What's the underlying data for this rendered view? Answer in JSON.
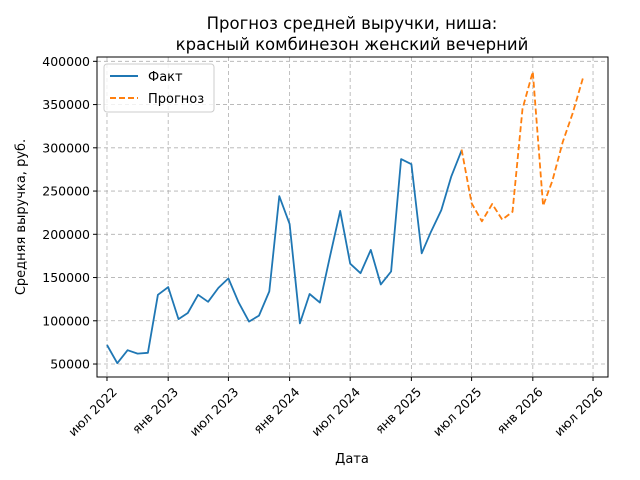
{
  "chart_data": {
    "type": "line",
    "title_lines": [
      "Прогноз средней выручки, ниша:",
      "красный комбинезон женский вечерний"
    ],
    "xlabel": "Дата",
    "ylabel": "Средняя выручка, руб.",
    "ylim": [
      35000,
      405000
    ],
    "xlim": [
      "2022-06-01",
      "2026-08-15"
    ],
    "yticks": [
      50000,
      100000,
      150000,
      200000,
      250000,
      300000,
      350000,
      400000
    ],
    "xticks": [
      {
        "date": "2022-07-01",
        "label": "июл 2022"
      },
      {
        "date": "2023-01-01",
        "label": "янв 2023"
      },
      {
        "date": "2023-07-01",
        "label": "июл 2023"
      },
      {
        "date": "2024-01-01",
        "label": "янв 2024"
      },
      {
        "date": "2024-07-01",
        "label": "июл 2024"
      },
      {
        "date": "2025-01-01",
        "label": "янв 2025"
      },
      {
        "date": "2025-07-01",
        "label": "июл 2025"
      },
      {
        "date": "2026-01-01",
        "label": "янв 2026"
      },
      {
        "date": "2026-07-01",
        "label": "июл 2026"
      }
    ],
    "grid": true,
    "legend_position": "top-left",
    "series": [
      {
        "name": "Факт",
        "style": "solid",
        "color": "#1f77b4",
        "points": [
          [
            "2022-07-01",
            72000
          ],
          [
            "2022-08-01",
            51000
          ],
          [
            "2022-09-01",
            66000
          ],
          [
            "2022-10-01",
            62000
          ],
          [
            "2022-11-01",
            63000
          ],
          [
            "2022-12-01",
            130000
          ],
          [
            "2023-01-01",
            139000
          ],
          [
            "2023-02-01",
            102000
          ],
          [
            "2023-03-01",
            109000
          ],
          [
            "2023-04-01",
            130000
          ],
          [
            "2023-05-01",
            122000
          ],
          [
            "2023-06-01",
            138000
          ],
          [
            "2023-07-01",
            149000
          ],
          [
            "2023-08-01",
            121000
          ],
          [
            "2023-09-01",
            99000
          ],
          [
            "2023-10-01",
            106000
          ],
          [
            "2023-11-01",
            134000
          ],
          [
            "2023-12-01",
            244000
          ],
          [
            "2024-01-01",
            212000
          ],
          [
            "2024-02-01",
            97000
          ],
          [
            "2024-03-01",
            131000
          ],
          [
            "2024-04-01",
            121000
          ],
          [
            "2024-05-01",
            174000
          ],
          [
            "2024-06-01",
            227000
          ],
          [
            "2024-07-01",
            166000
          ],
          [
            "2024-08-01",
            155000
          ],
          [
            "2024-09-01",
            182000
          ],
          [
            "2024-10-01",
            142000
          ],
          [
            "2024-11-01",
            157000
          ],
          [
            "2024-12-01",
            287000
          ],
          [
            "2025-01-01",
            281000
          ],
          [
            "2025-02-01",
            178000
          ],
          [
            "2025-03-01",
            203000
          ],
          [
            "2025-04-01",
            228000
          ],
          [
            "2025-05-01",
            267000
          ],
          [
            "2025-06-01",
            297000
          ]
        ]
      },
      {
        "name": "Прогноз",
        "style": "dashed",
        "color": "#ff7f0e",
        "points": [
          [
            "2025-06-01",
            298000
          ],
          [
            "2025-07-01",
            236000
          ],
          [
            "2025-08-01",
            215000
          ],
          [
            "2025-09-01",
            235000
          ],
          [
            "2025-10-01",
            217000
          ],
          [
            "2025-11-01",
            226000
          ],
          [
            "2025-12-01",
            345000
          ],
          [
            "2026-01-01",
            388000
          ],
          [
            "2026-02-01",
            233000
          ],
          [
            "2026-03-01",
            262000
          ],
          [
            "2026-04-01",
            307000
          ],
          [
            "2026-05-01",
            340000
          ],
          [
            "2026-06-01",
            381000
          ]
        ]
      }
    ]
  }
}
